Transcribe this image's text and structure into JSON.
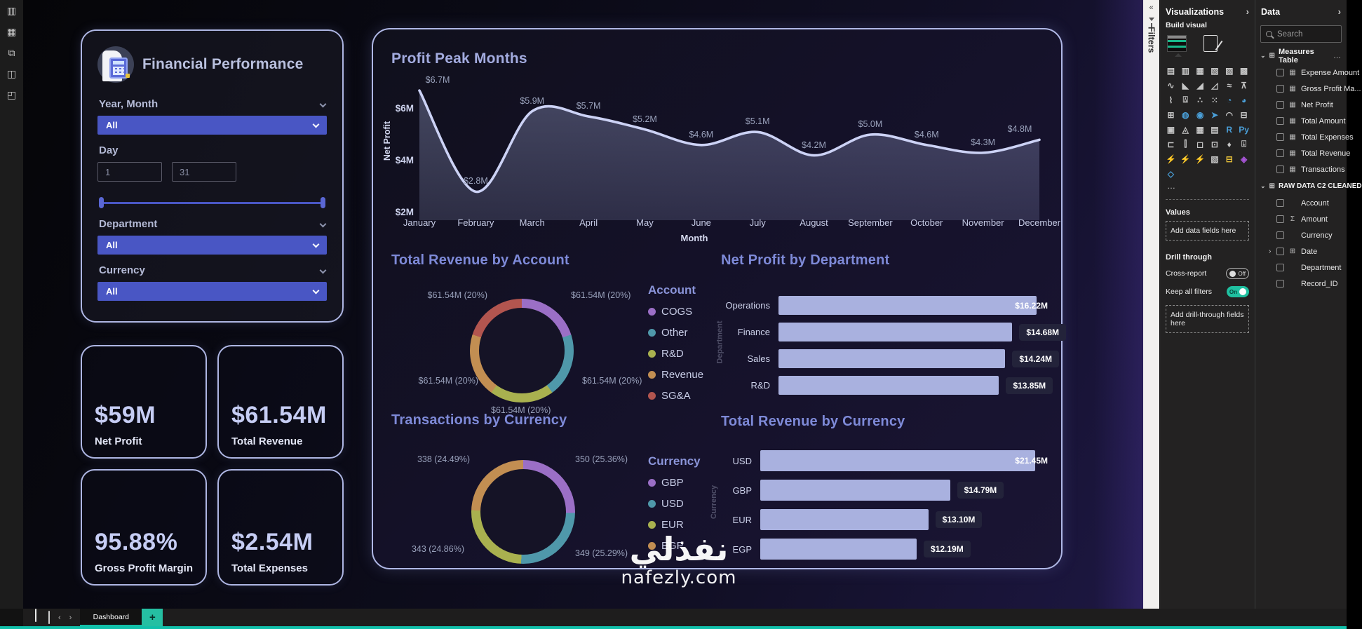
{
  "left_rail": {
    "items": [
      {
        "name": "report-view",
        "glyph": "▥"
      },
      {
        "name": "table-view",
        "glyph": "▦"
      },
      {
        "name": "model-view",
        "glyph": "⧉"
      },
      {
        "name": "dax-query-view",
        "glyph": "◫"
      },
      {
        "name": "tmdl-view",
        "glyph": "◰"
      }
    ]
  },
  "filter_panel": {
    "title": "Financial Performance",
    "year_month_label": "Year, Month",
    "year_month_value": "All",
    "day_label": "Day",
    "day_min": "1",
    "day_max": "31",
    "department_label": "Department",
    "department_value": "All",
    "currency_label": "Currency",
    "currency_value": "All"
  },
  "kpis": [
    {
      "value": "$59M",
      "label": "Net Profit"
    },
    {
      "value": "$61.54M",
      "label": "Total Revenue"
    },
    {
      "value": "95.88%",
      "label": "Gross Profit Margin"
    },
    {
      "value": "$2.54M",
      "label": "Total Expenses"
    }
  ],
  "chart_data": [
    {
      "type": "line",
      "title": "Profit Peak Months",
      "xlabel": "Month",
      "ylabel": "Net Profit",
      "x": [
        "January",
        "February",
        "March",
        "April",
        "May",
        "June",
        "July",
        "August",
        "September",
        "October",
        "November",
        "December"
      ],
      "values": [
        6.7,
        2.8,
        5.9,
        5.7,
        5.2,
        4.6,
        5.1,
        4.2,
        5.0,
        4.6,
        4.3,
        4.8
      ],
      "labels": [
        "$6.7M",
        "$2.8M",
        "$5.9M",
        "$5.7M",
        "$5.2M",
        "$4.6M",
        "$5.1M",
        "$4.2M",
        "$5.0M",
        "$4.6M",
        "$4.3M",
        "$4.8M"
      ],
      "yticks": [
        {
          "label": "$6M",
          "v": 6
        },
        {
          "label": "$4M",
          "v": 4
        },
        {
          "label": "$2M",
          "v": 2
        }
      ],
      "ylim": [
        1.7,
        7.5
      ],
      "grid": false,
      "line_color": "#ccd2f5"
    },
    {
      "type": "pie",
      "title": "Total Revenue by Account",
      "legend_title": "Account",
      "legend_position": "right",
      "slices": [
        {
          "name": "COGS",
          "label": "$61.54M (20%)",
          "pct": 20,
          "color": "#9b6fc6"
        },
        {
          "name": "Other",
          "label": "$61.54M (20%)",
          "pct": 20,
          "color": "#4f98aa"
        },
        {
          "name": "R&D",
          "label": "$61.54M (20%)",
          "pct": 20,
          "color": "#a9b14f"
        },
        {
          "name": "Revenue",
          "label": "$61.54M (20%)",
          "pct": 20,
          "color": "#c28e52"
        },
        {
          "name": "SG&A",
          "label": "$61.54M (20%)",
          "pct": 20,
          "color": "#b2554f"
        }
      ]
    },
    {
      "type": "bar",
      "title": "Net Profit by Department",
      "ylabel": "Department",
      "bar_color": "#a9b1df",
      "bars": [
        {
          "name": "Operations",
          "value": 16.22,
          "label": "$16.22M"
        },
        {
          "name": "Finance",
          "value": 14.68,
          "label": "$14.68M"
        },
        {
          "name": "Sales",
          "value": 14.24,
          "label": "$14.24M"
        },
        {
          "name": "R&D",
          "value": 13.85,
          "label": "$13.85M"
        }
      ]
    },
    {
      "type": "pie",
      "title": "Transactions by Currency",
      "legend_title": "Currency",
      "legend_position": "right",
      "slices": [
        {
          "name": "GBP",
          "label": "350 (25.36%)",
          "pct": 25.36,
          "color": "#9b6fc6"
        },
        {
          "name": "USD",
          "label": "349 (25.29%)",
          "pct": 25.29,
          "color": "#4f98aa"
        },
        {
          "name": "EUR",
          "label": "343 (24.86%)",
          "pct": 24.86,
          "color": "#a9b14f"
        },
        {
          "name": "EGP",
          "label": "338 (24.49%)",
          "pct": 24.49,
          "color": "#c28e52"
        }
      ]
    },
    {
      "type": "bar",
      "title": "Total Revenue by Currency",
      "ylabel": "Currency",
      "bar_color": "#a9b1df",
      "bars": [
        {
          "name": "USD",
          "value": 21.45,
          "label": "$21.45M"
        },
        {
          "name": "GBP",
          "value": 14.79,
          "label": "$14.79M"
        },
        {
          "name": "EUR",
          "value": 13.1,
          "label": "$13.10M"
        },
        {
          "name": "EGP",
          "value": 12.19,
          "label": "$12.19M"
        }
      ]
    }
  ],
  "watermark": {
    "arabic": "نفذلي",
    "latin": "nafezly.com"
  },
  "filters_strip": {
    "collapse_icon": "«",
    "label": "Filters"
  },
  "viz_pane": {
    "title": "Visualizations",
    "collapse_icon": "›",
    "subtitle": "Build visual",
    "more_icon": "…",
    "icons": [
      {
        "g": "▤",
        "c": "#c6c6c6"
      },
      {
        "g": "▥",
        "c": "#c6c6c6"
      },
      {
        "g": "▦",
        "c": "#c6c6c6"
      },
      {
        "g": "▧",
        "c": "#c6c6c6"
      },
      {
        "g": "▨",
        "c": "#c6c6c6"
      },
      {
        "g": "▩",
        "c": "#c6c6c6"
      },
      {
        "g": "∿",
        "c": "#c6c6c6"
      },
      {
        "g": "◣",
        "c": "#c6c6c6"
      },
      {
        "g": "◢",
        "c": "#c6c6c6"
      },
      {
        "g": "◿",
        "c": "#c6c6c6"
      },
      {
        "g": "≈",
        "c": "#c6c6c6"
      },
      {
        "g": "⊼",
        "c": "#c6c6c6"
      },
      {
        "g": "⌇",
        "c": "#c6c6c6"
      },
      {
        "g": "⍍",
        "c": "#c6c6c6"
      },
      {
        "g": "∴",
        "c": "#c6c6c6"
      },
      {
        "g": "⁙",
        "c": "#c6c6c6"
      },
      {
        "g": "◔",
        "c": "#4a9fd8"
      },
      {
        "g": "◕",
        "c": "#4a9fd8"
      },
      {
        "g": "⊞",
        "c": "#c6c6c6"
      },
      {
        "g": "◍",
        "c": "#4a9fd8"
      },
      {
        "g": "◉",
        "c": "#4a9fd8"
      },
      {
        "g": "➤",
        "c": "#4a9fd8"
      },
      {
        "g": "◠",
        "c": "#c6c6c6"
      },
      {
        "g": "⊟",
        "c": "#c6c6c6"
      },
      {
        "g": "▣",
        "c": "#c6c6c6"
      },
      {
        "g": "◬",
        "c": "#c6c6c6"
      },
      {
        "g": "▦",
        "c": "#c6c6c6"
      },
      {
        "g": "▤",
        "c": "#c6c6c6"
      },
      {
        "g": "R",
        "c": "#4a9fd8"
      },
      {
        "g": "Py",
        "c": "#4a9fd8"
      },
      {
        "g": "⊏",
        "c": "#c6c6c6"
      },
      {
        "g": "⫿",
        "c": "#c6c6c6"
      },
      {
        "g": "◻",
        "c": "#c6c6c6"
      },
      {
        "g": "⊡",
        "c": "#c6c6c6"
      },
      {
        "g": "♦",
        "c": "#c6c6c6"
      },
      {
        "g": "⍗",
        "c": "#c6c6c6"
      },
      {
        "g": "⚡",
        "c": "#e4bf3a"
      },
      {
        "g": "⚡",
        "c": "#e4bf3a"
      },
      {
        "g": "⚡",
        "c": "#e4bf3a"
      },
      {
        "g": "▧",
        "c": "#c6c6c6"
      },
      {
        "g": "⊟",
        "c": "#e4bf3a"
      },
      {
        "g": "◈",
        "c": "#a855d8"
      },
      {
        "g": "◇",
        "c": "#4a9fd8"
      }
    ],
    "values_label": "Values",
    "values_placeholder": "Add data fields here",
    "drill_label": "Drill through",
    "cross_report_label": "Cross-report",
    "cross_report_state": "Off",
    "keep_filters_label": "Keep all filters",
    "keep_filters_state": "On",
    "drill_placeholder": "Add drill-through fields here"
  },
  "data_pane": {
    "title": "Data",
    "collapse_icon": "›",
    "search_placeholder": "Search",
    "measures_table": {
      "chev": "⌄",
      "name": "Measures Table",
      "more": "…",
      "fields": [
        {
          "name": "Expense Amount",
          "icon": "▦",
          "chev": ""
        },
        {
          "name": "Gross Profit Ma...",
          "icon": "▦",
          "chev": ""
        },
        {
          "name": "Net Profit",
          "icon": "▦",
          "chev": ""
        },
        {
          "name": "Total Amount",
          "icon": "▦",
          "chev": ""
        },
        {
          "name": "Total Expenses",
          "icon": "▦",
          "chev": ""
        },
        {
          "name": "Total Revenue",
          "icon": "▦",
          "chev": ""
        },
        {
          "name": "Transactions",
          "icon": "▦",
          "chev": ""
        }
      ]
    },
    "raw_table": {
      "chev": "⌄",
      "name": "RAW DATA C2 CLEANED",
      "fields": [
        {
          "name": "Account",
          "icon": "",
          "chev": ""
        },
        {
          "name": "Amount",
          "icon": "Σ",
          "chev": ""
        },
        {
          "name": "Currency",
          "icon": "",
          "chev": ""
        },
        {
          "name": "Date",
          "icon": "⊞",
          "chev": "›"
        },
        {
          "name": "Department",
          "icon": "",
          "chev": ""
        },
        {
          "name": "Record_ID",
          "icon": "",
          "chev": ""
        }
      ]
    }
  },
  "bottom_bar": {
    "prev_icon": "‹",
    "next_icon": "›",
    "tab_label": "Dashboard",
    "add_label": "+"
  }
}
